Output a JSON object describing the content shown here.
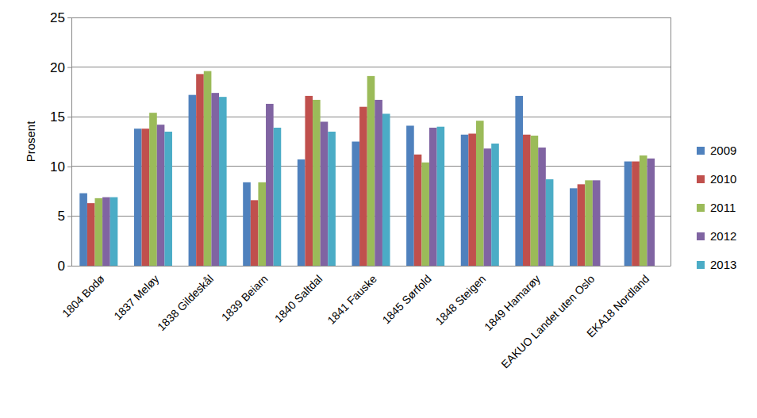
{
  "chart_data": {
    "type": "bar",
    "y_label": "Prosent",
    "categories": [
      "1804 Bodø",
      "1837 Meløy",
      "1838 Gildeskål",
      "1839 Beiarn",
      "1840 Saltdal",
      "1841 Fauske",
      "1845 Sørfold",
      "1848 Steigen",
      "1849 Hamarøy",
      "EAKUO Landet uten Oslo",
      "EKA18 Nordland"
    ],
    "series": [
      {
        "name": "2009",
        "color": "#4f81bd",
        "values": [
          7.3,
          13.8,
          17.2,
          8.4,
          10.7,
          12.5,
          14.1,
          13.2,
          17.1,
          7.8,
          10.5
        ]
      },
      {
        "name": "2010",
        "color": "#c0504d",
        "values": [
          6.3,
          13.8,
          19.3,
          6.6,
          17.1,
          16.0,
          11.2,
          13.3,
          13.2,
          8.2,
          10.5
        ]
      },
      {
        "name": "2011",
        "color": "#9bbb59",
        "values": [
          6.8,
          15.4,
          19.6,
          8.4,
          16.7,
          19.1,
          10.4,
          14.6,
          13.1,
          8.6,
          11.1
        ]
      },
      {
        "name": "2012",
        "color": "#8064a2",
        "values": [
          6.9,
          14.2,
          17.4,
          16.3,
          14.5,
          16.7,
          13.9,
          11.8,
          11.9,
          8.6,
          10.8
        ]
      },
      {
        "name": "2013",
        "color": "#4bacc6",
        "values": [
          6.9,
          13.5,
          17.0,
          13.9,
          13.5,
          15.3,
          14.0,
          12.3,
          8.7,
          null,
          null
        ]
      }
    ],
    "ylim": [
      0,
      25
    ],
    "yticks": [
      0,
      5,
      10,
      15,
      20,
      25
    ],
    "grid": true,
    "legend": "right"
  }
}
